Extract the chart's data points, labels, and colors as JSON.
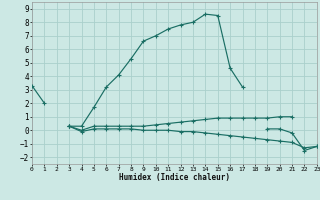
{
  "xlabel": "Humidex (Indice chaleur)",
  "bg_color": "#cce8e4",
  "grid_color": "#aad0cc",
  "line_color": "#1a6e64",
  "xlim": [
    0,
    23
  ],
  "ylim": [
    -2.5,
    9.5
  ],
  "xticks": [
    0,
    1,
    2,
    3,
    4,
    5,
    6,
    7,
    8,
    9,
    10,
    11,
    12,
    13,
    14,
    15,
    16,
    17,
    18,
    19,
    20,
    21,
    22,
    23
  ],
  "yticks": [
    -2,
    -1,
    0,
    1,
    2,
    3,
    4,
    5,
    6,
    7,
    8,
    9
  ],
  "line1_x": [
    0,
    1,
    3,
    4,
    5,
    6,
    7,
    8,
    9,
    10,
    11,
    12,
    13,
    14,
    15,
    16,
    17
  ],
  "line1_y": [
    3.3,
    2.0,
    0.3,
    0.3,
    1.7,
    3.2,
    4.1,
    5.3,
    6.6,
    7.0,
    7.5,
    7.8,
    8.0,
    8.6,
    8.5,
    4.6,
    3.2
  ],
  "line1_gaps": [
    [
      1,
      3
    ]
  ],
  "line2_x": [
    3,
    4,
    5,
    6,
    7,
    8,
    9,
    10,
    11,
    12,
    13,
    14,
    15,
    16,
    17,
    18,
    19,
    20,
    21
  ],
  "line2_y": [
    0.3,
    0.0,
    0.3,
    0.3,
    0.3,
    0.3,
    0.3,
    0.4,
    0.5,
    0.6,
    0.7,
    0.8,
    0.9,
    0.9,
    0.9,
    0.9,
    0.9,
    1.0,
    1.0
  ],
  "line3_x": [
    3,
    4,
    5,
    6,
    7,
    8,
    9,
    10,
    11,
    12,
    13,
    14,
    15,
    16,
    17,
    18,
    19,
    20,
    21,
    22,
    23
  ],
  "line3_y": [
    0.3,
    -0.1,
    0.1,
    0.1,
    0.1,
    0.1,
    0.0,
    0.0,
    0.0,
    -0.1,
    -0.1,
    -0.2,
    -0.3,
    -0.4,
    -0.5,
    -0.6,
    -0.7,
    -0.8,
    -0.9,
    -1.3,
    -1.2
  ],
  "line4_x": [
    19,
    20,
    21,
    22,
    23
  ],
  "line4_y": [
    0.1,
    0.1,
    -0.2,
    -1.5,
    -1.2
  ]
}
